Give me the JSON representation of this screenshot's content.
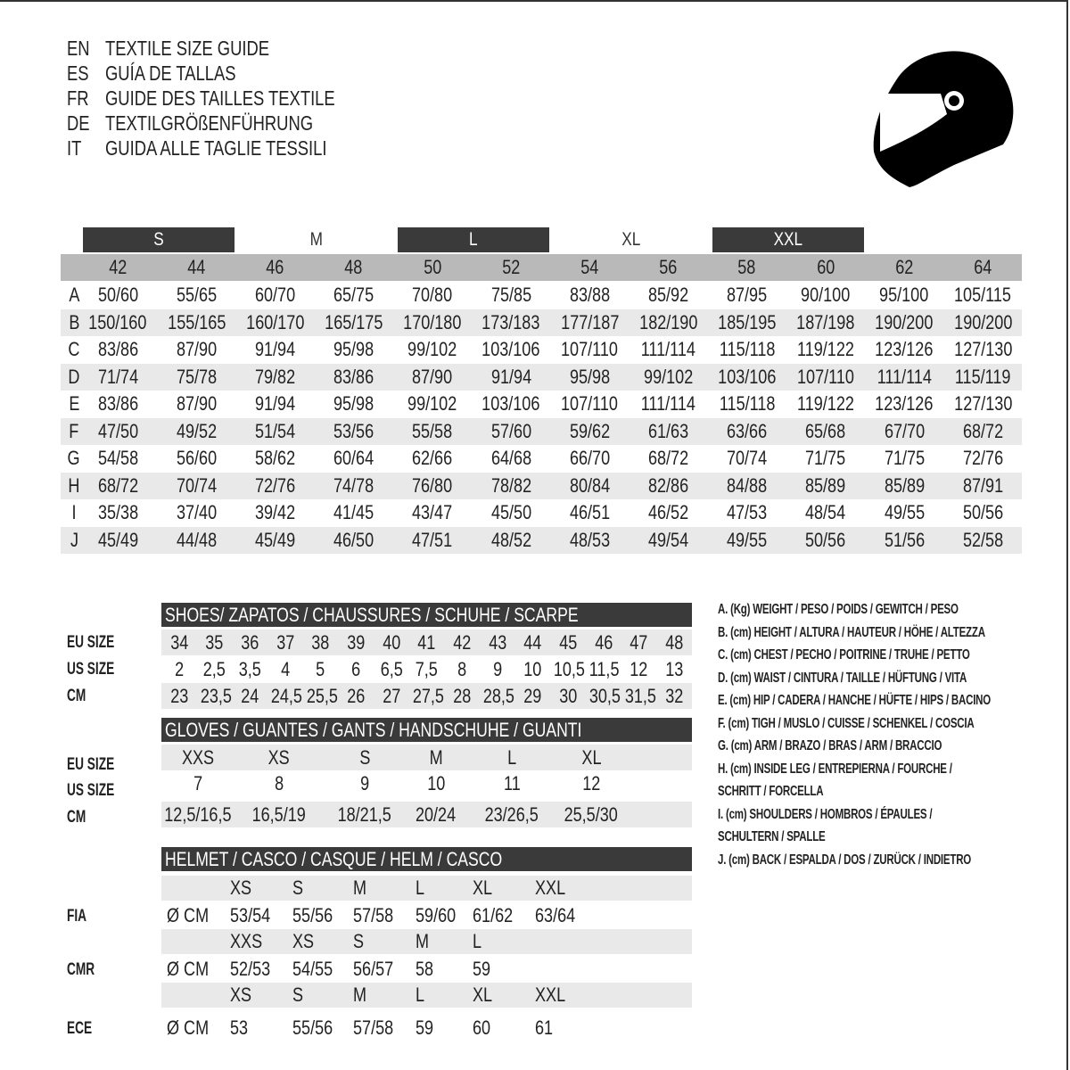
{
  "titles": [
    {
      "code": "EN",
      "text": "TEXTILE SIZE GUIDE"
    },
    {
      "code": "ES",
      "text": "GUÍA DE TALLAS"
    },
    {
      "code": "FR",
      "text": "GUIDE DES TAILLES TEXTILE"
    },
    {
      "code": "DE",
      "text": "TEXTILGRÖßENFÜHRUNG"
    },
    {
      "code": "IT",
      "text": "GUIDA ALLE TAGLIE TESSILI"
    }
  ],
  "icon": "helmet-icon",
  "colors": {
    "dark_header": "#3a3a3a",
    "number_row": "#b9b9b9",
    "stripe": "#e9e9e9"
  },
  "textile": {
    "size_groups": [
      "S",
      "M",
      "L",
      "XL",
      "XXL"
    ],
    "sizes": [
      "42",
      "44",
      "46",
      "48",
      "50",
      "52",
      "54",
      "56",
      "58",
      "60",
      "62",
      "64"
    ],
    "rows": [
      {
        "label": "A",
        "values": [
          "50/60",
          "55/65",
          "60/70",
          "65/75",
          "70/80",
          "75/85",
          "83/88",
          "85/92",
          "87/95",
          "90/100",
          "95/100",
          "105/115"
        ]
      },
      {
        "label": "B",
        "values": [
          "150/160",
          "155/165",
          "160/170",
          "165/175",
          "170/180",
          "173/183",
          "177/187",
          "182/190",
          "185/195",
          "187/198",
          "190/200",
          "190/200"
        ]
      },
      {
        "label": "C",
        "values": [
          "83/86",
          "87/90",
          "91/94",
          "95/98",
          "99/102",
          "103/106",
          "107/110",
          "111/114",
          "115/118",
          "119/122",
          "123/126",
          "127/130"
        ]
      },
      {
        "label": "D",
        "values": [
          "71/74",
          "75/78",
          "79/82",
          "83/86",
          "87/90",
          "91/94",
          "95/98",
          "99/102",
          "103/106",
          "107/110",
          "111/114",
          "115/119"
        ]
      },
      {
        "label": "E",
        "values": [
          "83/86",
          "87/90",
          "91/94",
          "95/98",
          "99/102",
          "103/106",
          "107/110",
          "111/114",
          "115/118",
          "119/122",
          "123/126",
          "127/130"
        ]
      },
      {
        "label": "F",
        "values": [
          "47/50",
          "49/52",
          "51/54",
          "53/56",
          "55/58",
          "57/60",
          "59/62",
          "61/63",
          "63/66",
          "65/68",
          "67/70",
          "68/72"
        ]
      },
      {
        "label": "G",
        "values": [
          "54/58",
          "56/60",
          "58/62",
          "60/64",
          "62/66",
          "64/68",
          "66/70",
          "68/72",
          "70/74",
          "71/75",
          "71/75",
          "72/76"
        ]
      },
      {
        "label": "H",
        "values": [
          "68/72",
          "70/74",
          "72/76",
          "74/78",
          "76/80",
          "78/82",
          "80/84",
          "82/86",
          "84/88",
          "85/89",
          "85/89",
          "87/91"
        ]
      },
      {
        "label": "I",
        "values": [
          "35/38",
          "37/40",
          "39/42",
          "41/45",
          "43/47",
          "45/50",
          "46/51",
          "46/52",
          "47/53",
          "48/54",
          "49/55",
          "50/56"
        ]
      },
      {
        "label": "J",
        "values": [
          "45/49",
          "44/48",
          "45/49",
          "46/50",
          "47/51",
          "48/52",
          "48/53",
          "49/54",
          "49/55",
          "50/56",
          "51/56",
          "52/58"
        ]
      }
    ]
  },
  "shoes": {
    "title": "SHOES/ ZAPATOS / CHAUSSURES / SCHUHE / SCARPE",
    "rows": [
      {
        "label": "EU SIZE",
        "values": [
          "34",
          "35",
          "36",
          "37",
          "38",
          "39",
          "40",
          "41",
          "42",
          "43",
          "44",
          "45",
          "46",
          "47",
          "48"
        ]
      },
      {
        "label": "US SIZE",
        "values": [
          "2",
          "2,5",
          "3,5",
          "4",
          "5",
          "6",
          "6,5",
          "7,5",
          "8",
          "9",
          "10",
          "10,5",
          "11,5",
          "12",
          "13"
        ]
      },
      {
        "label": "CM",
        "values": [
          "23",
          "23,5",
          "24",
          "24,5",
          "25,5",
          "26",
          "27",
          "27,5",
          "28",
          "28,5",
          "29",
          "30",
          "30,5",
          "31,5",
          "32"
        ]
      }
    ]
  },
  "gloves": {
    "title": "GLOVES / GUANTES / GANTS / HANDSCHUHE / GUANTI",
    "rows": [
      {
        "label": "EU SIZE",
        "values": [
          "XXS",
          "XS",
          "S",
          "M",
          "L",
          "XL"
        ]
      },
      {
        "label": "US SIZE",
        "values": [
          "7",
          "8",
          "9",
          "10",
          "11",
          "12"
        ]
      },
      {
        "label": "CM",
        "values": [
          "12,5/16,5",
          "16,5/19",
          "18/21,5",
          "20/24",
          "23/26,5",
          "25,5/30"
        ]
      }
    ]
  },
  "helmet": {
    "title": "HELMET / CASCO / CASQUE / HELM / CASCO",
    "unit": "Ø CM",
    "standards": [
      {
        "label": "FIA",
        "sizes": [
          "XS",
          "S",
          "M",
          "L",
          "XL",
          "XXL"
        ],
        "values": [
          "53/54",
          "55/56",
          "57/58",
          "59/60",
          "61/62",
          "63/64"
        ]
      },
      {
        "label": "CMR",
        "sizes": [
          "XXS",
          "XS",
          "S",
          "M",
          "L"
        ],
        "values": [
          "52/53",
          "54/55",
          "56/57",
          "58",
          "59"
        ]
      },
      {
        "label": "ECE",
        "sizes": [
          "XS",
          "S",
          "M",
          "L",
          "XL",
          "XXL"
        ],
        "values": [
          "53",
          "55/56",
          "57/58",
          "59",
          "60",
          "61"
        ]
      }
    ]
  },
  "legend": [
    "A. (Kg) WEIGHT / PESO / POIDS / GEWITCH / PESO",
    "B. (cm) HEIGHT / ALTURA / HAUTEUR / HÖHE / ALTEZZA",
    "C. (cm) CHEST / PECHO / POITRINE / TRUHE / PETTO",
    "D. (cm) WAIST / CINTURA / TAILLE / HÜFTUNG / VITA",
    "E. (cm) HIP / CADERA / HANCHE / HÜFTE / HIPS /  BACINO",
    "F.  (cm) TIGH / MUSLO / CUISSE / SCHENKEL / COSCIA",
    "G. (cm) ARM  / BRAZO / BRAS / ARM / BRACCIO",
    "H. (cm) INSIDE LEG / ENTREPIERNA / FOURCHE /",
    "SCHRITT / FORCELLA",
    "I.  (cm) SHOULDERS / HOMBROS / ÉPAULES /",
    "SCHULTERN / SPALLE",
    "J. (cm) BACK / ESPALDA / DOS / ZURÜCK / INDIETRO"
  ]
}
